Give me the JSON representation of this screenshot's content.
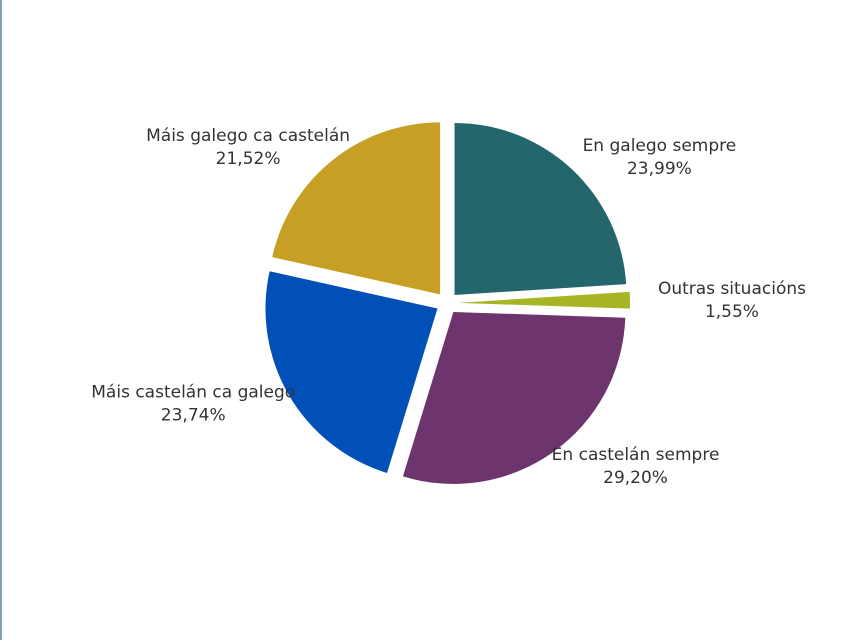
{
  "chart_data": {
    "type": "pie",
    "categories": [
      "En galego sempre",
      "Outras situacións",
      "En castelán sempre",
      "Máis castelán ca galego",
      "Máis galego ca castelán"
    ],
    "values": [
      23.99,
      1.55,
      29.2,
      23.74,
      21.52
    ],
    "value_labels": [
      "23,99%",
      "1,55%",
      "29,20%",
      "23,74%",
      "21,52%"
    ],
    "colors": [
      "#23676d",
      "#a6b526",
      "#6d346e",
      "#0050b8",
      "#c79f24"
    ]
  }
}
